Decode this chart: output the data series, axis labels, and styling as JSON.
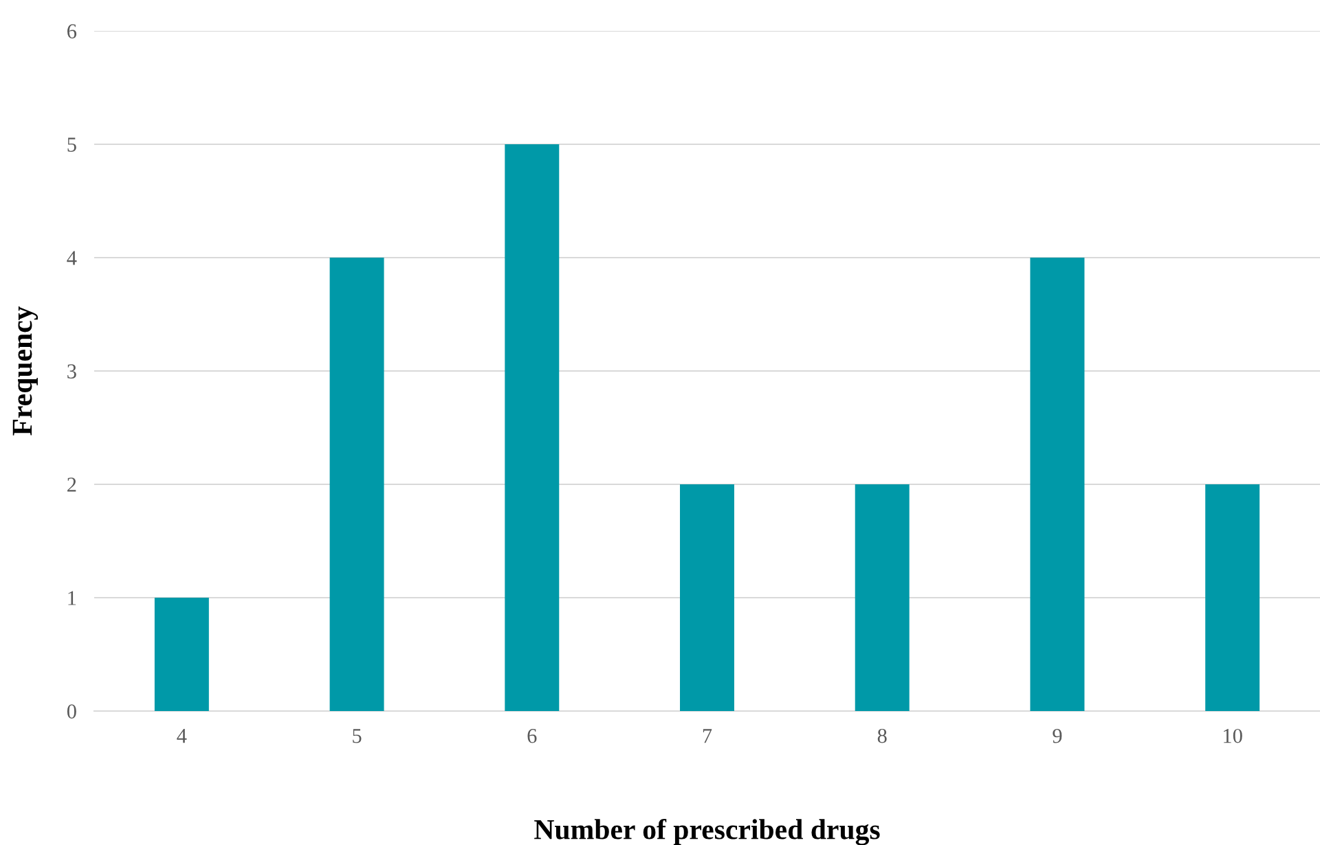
{
  "chart_data": {
    "type": "bar",
    "xlabel": "Number of prescribed drugs",
    "ylabel": "Frequency",
    "categories": [
      "4",
      "5",
      "6",
      "7",
      "8",
      "9",
      "10"
    ],
    "series": [
      {
        "color": "#0099a8",
        "values": [
          1,
          4,
          5,
          2,
          2,
          4,
          2
        ]
      }
    ],
    "ylim": [
      0,
      6
    ],
    "yticks": [
      0,
      1,
      2,
      3,
      4,
      5,
      6
    ],
    "grid": "y",
    "legend": false
  }
}
